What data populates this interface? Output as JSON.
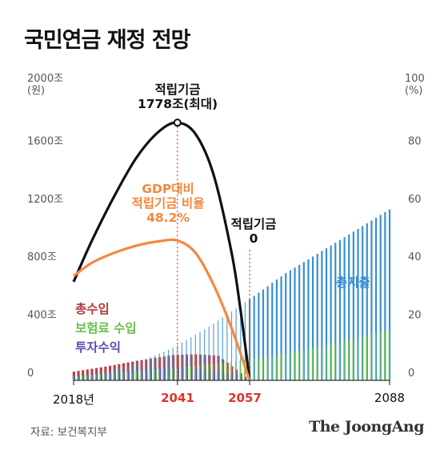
{
  "title": "국민연금 재정 전망",
  "source": "자료: 보건복지부",
  "logo": "The JoongAng",
  "colors": {
    "fund": "#111111",
    "gdp_ratio": "#f5883d",
    "total_expenditure": "#3a8fd1",
    "total_income": "#b03a3e",
    "premium_income": "#6cc24a",
    "investment_income": "#5b4fb3",
    "highlight": "#e0352b"
  },
  "annotations": {
    "peak_label": "적립기금",
    "peak_value": "1778조(최대)",
    "gdp_label_1": "GDP대비",
    "gdp_label_2": "적립기금 비율",
    "gdp_value": "48.2%",
    "zero_label": "적립기금",
    "zero_value": "0",
    "expenditure_label": "총지출",
    "income_label": "총수입",
    "premium_label": "보험료 수입",
    "investment_label": "투자수익"
  },
  "chart_data": {
    "type": "line",
    "x_ticks": [
      {
        "year": 2018,
        "label": "2018년",
        "highlight": false
      },
      {
        "year": 2041,
        "label": "2041",
        "highlight": true
      },
      {
        "year": 2057,
        "label": "2057",
        "highlight": true
      },
      {
        "year": 2088,
        "label": "2088",
        "highlight": false
      }
    ],
    "left_axis": {
      "unit_top": "2000조",
      "unit_sub": "(원)",
      "ticks": [
        "1600조",
        "1200조",
        "800조",
        "400조",
        "0"
      ],
      "values": [
        1600,
        1200,
        800,
        400,
        0
      ],
      "ylim": [
        0,
        2000
      ]
    },
    "right_axis": {
      "unit_top": "100",
      "unit_sub": "(%)",
      "ticks": [
        "80",
        "60",
        "40",
        "20",
        "0"
      ],
      "values": [
        80,
        60,
        40,
        20,
        0
      ],
      "ylim": [
        0,
        100
      ]
    },
    "series": [
      {
        "name": "적립기금",
        "axis": "left",
        "x": [
          2018,
          2022,
          2027,
          2032,
          2037,
          2041,
          2045,
          2049,
          2053,
          2055,
          2057
        ],
        "values": [
          680,
          960,
          1270,
          1540,
          1720,
          1778,
          1700,
          1420,
          880,
          480,
          0
        ]
      },
      {
        "name": "GDP대비 적립기금 비율",
        "axis": "right",
        "x": [
          2018,
          2022,
          2027,
          2032,
          2037,
          2041,
          2045,
          2049,
          2053,
          2057
        ],
        "values": [
          36,
          40.5,
          44,
          46.5,
          48,
          48.2,
          44,
          33,
          18,
          0
        ]
      },
      {
        "name": "총지출",
        "axis": "left",
        "x": [
          2018,
          2025,
          2032,
          2040,
          2048,
          2057,
          2065,
          2075,
          2088
        ],
        "values": [
          22,
          55,
          120,
          225,
          370,
          560,
          740,
          930,
          1180
        ]
      },
      {
        "name": "총수입",
        "axis": "left",
        "x": [
          2018,
          2025,
          2032,
          2040,
          2045,
          2050,
          2057
        ],
        "values": [
          60,
          95,
          135,
          175,
          180,
          170,
          0
        ]
      },
      {
        "name": "보험료 수입",
        "axis": "left",
        "x": [
          2018,
          2025,
          2032,
          2040,
          2048,
          2057,
          2065,
          2075,
          2088
        ],
        "values": [
          30,
          45,
          65,
          85,
          110,
          145,
          185,
          250,
          350
        ]
      },
      {
        "name": "투자수익",
        "axis": "left",
        "x": [
          2018,
          2025,
          2032,
          2040,
          2045,
          2050,
          2054,
          2057
        ],
        "values": [
          30,
          50,
          70,
          90,
          85,
          60,
          30,
          0
        ]
      }
    ]
  }
}
